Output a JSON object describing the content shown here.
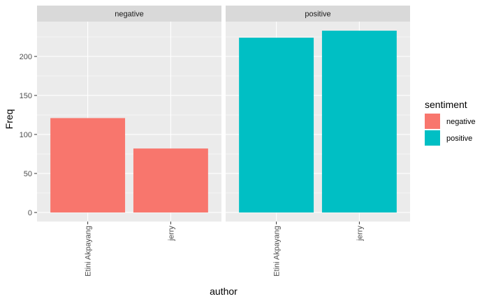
{
  "chart_data": {
    "type": "bar",
    "facets": [
      {
        "label": "negative",
        "categories": [
          "Etini Akpayang",
          "jerry"
        ],
        "values": [
          121,
          82
        ],
        "fill_series": "negative"
      },
      {
        "label": "positive",
        "categories": [
          "Etini Akpayang",
          "jerry"
        ],
        "values": [
          224,
          233
        ],
        "fill_series": "positive"
      }
    ],
    "series": [
      {
        "name": "negative",
        "color": "#F8766D"
      },
      {
        "name": "positive",
        "color": "#00BFC4"
      }
    ],
    "xlabel": "author",
    "ylabel": "Freq",
    "ylim": [
      -11.65,
      244.65
    ],
    "yticks": [
      0,
      50,
      100,
      150,
      200
    ],
    "ytick_labels": [
      "0",
      "50",
      "100",
      "150",
      "200"
    ],
    "grid": true,
    "legend": {
      "title": "sentiment",
      "position": "right"
    },
    "panel_background": "#EBEBEB",
    "strip_background": "#D9D9D9",
    "grid_color": "#FFFFFF"
  }
}
